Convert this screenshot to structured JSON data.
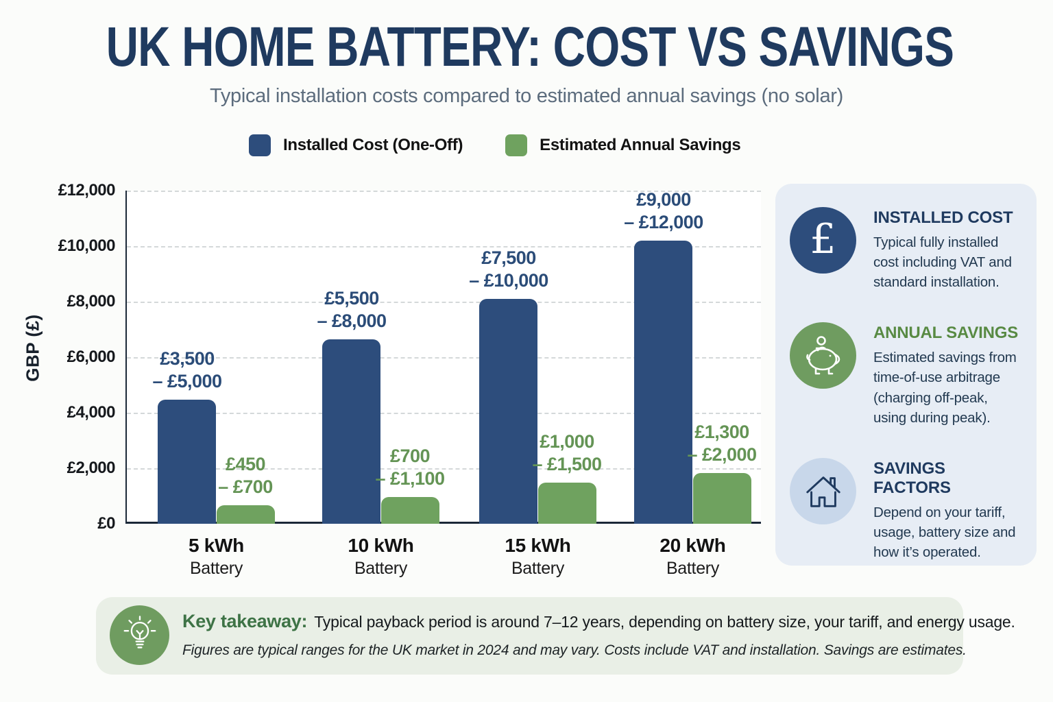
{
  "title": "UK HOME BATTERY: COST VS SAVINGS",
  "subtitle": "Typical installation costs compared to estimated annual savings (no solar)",
  "legend": [
    {
      "label": "Installed Cost (One-Off)",
      "color": "#2d4d7c"
    },
    {
      "label": "Estimated Annual Savings",
      "color": "#6fa25f"
    }
  ],
  "chart_data": {
    "type": "bar",
    "title": "UK HOME BATTERY: COST VS SAVINGS",
    "xlabel": "",
    "ylabel": "GBP (£)",
    "ylim": [
      0,
      12000
    ],
    "ytick_step": 2000,
    "ytick_labels": [
      "£0",
      "£2,000",
      "£4,000",
      "£6,000",
      "£8,000",
      "£10,000",
      "£12,000"
    ],
    "grid": "horizontal dashed",
    "legend_position": "top",
    "categories": [
      "5 kWh",
      "10 kWh",
      "15 kWh",
      "20 kWh"
    ],
    "category_sublabel": "Battery",
    "series": [
      {
        "name": "Installed Cost (One-Off)",
        "color": "#2d4d7c",
        "label_color": "#2b4c78",
        "bar_values": [
          4480,
          6650,
          8100,
          10200
        ],
        "ranges": [
          [
            3500,
            5000
          ],
          [
            5500,
            8000
          ],
          [
            7500,
            10000
          ],
          [
            9000,
            12000
          ]
        ],
        "range_labels": [
          [
            "£3,500",
            "– £5,000"
          ],
          [
            "£5,500",
            "– £8,000"
          ],
          [
            "£7,500",
            "– £10,000"
          ],
          [
            "£9,000",
            "– £12,000"
          ]
        ]
      },
      {
        "name": "Estimated Annual Savings",
        "color": "#6fa25f",
        "label_color": "#649455",
        "bar_values": [
          670,
          960,
          1480,
          1820
        ],
        "ranges": [
          [
            450,
            700
          ],
          [
            700,
            1100
          ],
          [
            1000,
            1500
          ],
          [
            1300,
            2000
          ]
        ],
        "range_labels": [
          [
            "£450",
            "– £700"
          ],
          [
            "£700",
            "– £1,100"
          ],
          [
            "£1,000",
            "– £1,500"
          ],
          [
            "£1,300",
            "– £2,000"
          ]
        ]
      }
    ]
  },
  "sidebar": {
    "items": [
      {
        "icon": "pound-icon",
        "title": "INSTALLED COST",
        "title_color": "#1f3a5f",
        "circle_color": "#2d4d7c",
        "text": "Typical fully installed cost including VAT and standard installation."
      },
      {
        "icon": "piggy-bank-icon",
        "title": "ANNUAL SAVINGS",
        "title_color": "#588a43",
        "circle_color": "#6f9c60",
        "text": "Estimated savings from time-of-use arbitrage (charging off-peak, using during peak)."
      },
      {
        "icon": "house-icon",
        "title": "SAVINGS FACTORS",
        "title_color": "#1f3a5f",
        "circle_color": "#c8d7ea",
        "text": "Depend on your tariff, usage, battery size and how it’s operated."
      }
    ]
  },
  "takeaway": {
    "label": "Key takeaway:",
    "text": "Typical payback period is around 7–12 years, depending on battery size, your tariff, and energy usage.",
    "footnote": "Figures are typical ranges for the UK market in 2024 and may vary. Costs include VAT and installation. Savings are estimates."
  }
}
